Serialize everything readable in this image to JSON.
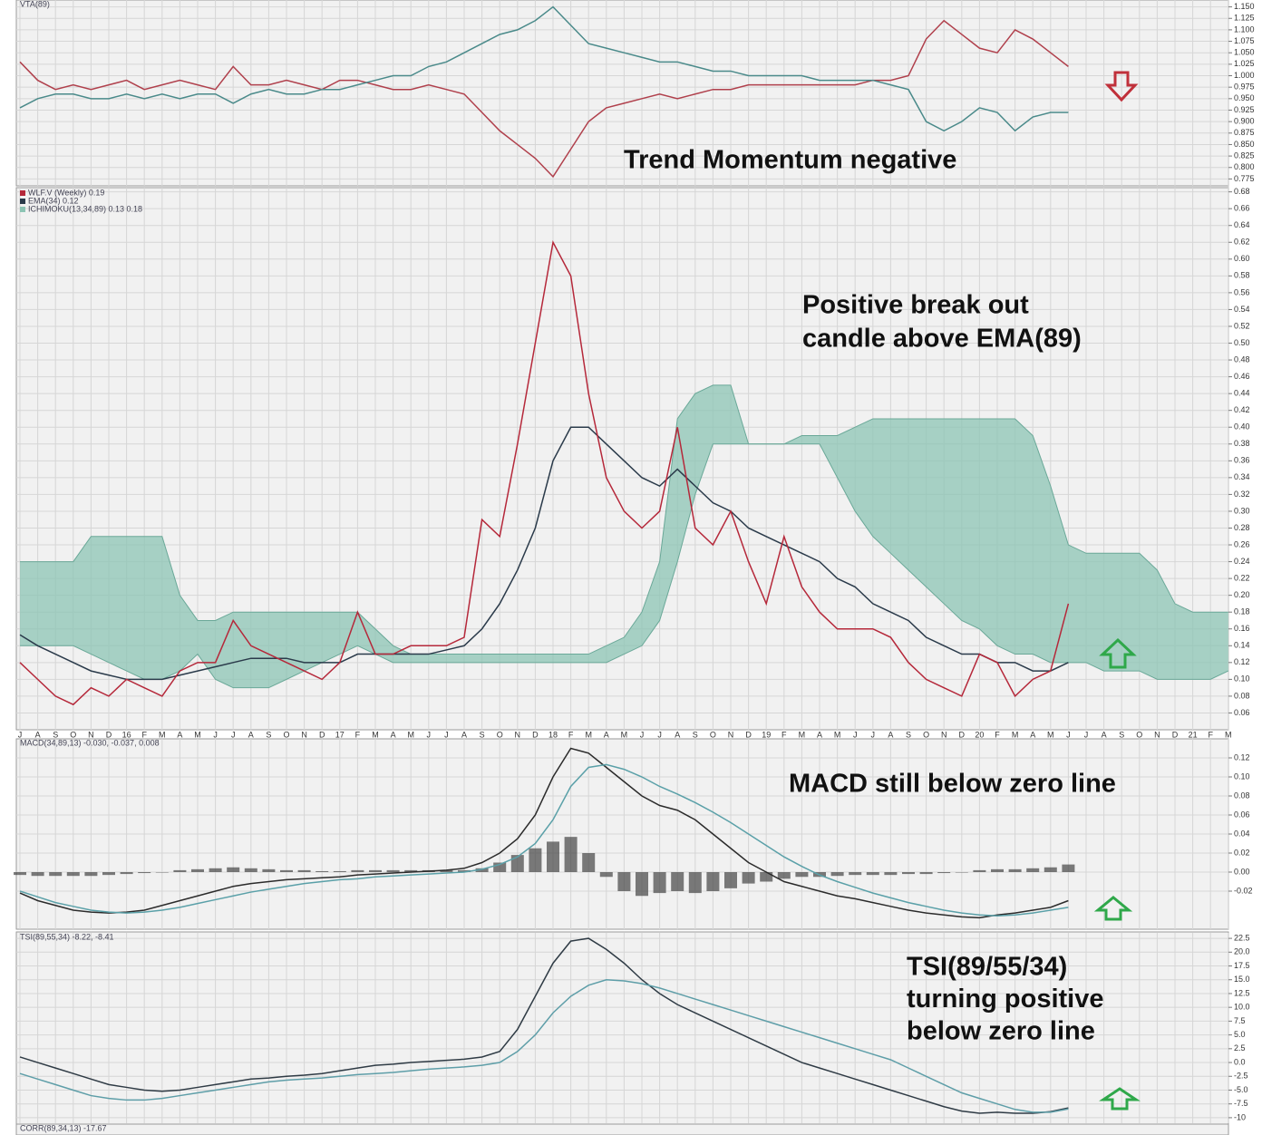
{
  "chart_data": [
    {
      "type": "line",
      "title": "VTA(89)",
      "ylim": [
        0.76,
        1.165
      ],
      "yticks": [
        0.775,
        {
          "value": 0.8,
          "label": "0.800"
        },
        0.825,
        {
          "value": 0.85,
          "label": "0.850"
        },
        0.875,
        {
          "value": 0.9,
          "label": "0.900"
        },
        0.925,
        {
          "value": 0.95,
          "label": "0.950"
        },
        0.975,
        {
          "value": 1,
          "label": "1.000"
        },
        1.025,
        {
          "value": 1.05,
          "label": "1.050"
        },
        1.075,
        {
          "value": 1.1,
          "label": "1.100"
        },
        1.125,
        {
          "value": 1.15,
          "label": "1.150"
        }
      ],
      "grid": true,
      "series": [
        {
          "color": "#b0404c",
          "values": [
            1.03,
            0.99,
            0.97,
            0.98,
            0.97,
            0.98,
            0.99,
            0.97,
            0.98,
            0.99,
            0.98,
            0.97,
            1.02,
            0.98,
            0.98,
            0.99,
            0.98,
            0.97,
            0.99,
            0.99,
            0.98,
            0.97,
            0.97,
            0.98,
            0.97,
            0.96,
            0.92,
            0.88,
            0.85,
            0.82,
            0.78,
            0.84,
            0.9,
            0.93,
            0.94,
            0.95,
            0.96,
            0.95,
            0.96,
            0.97,
            0.97,
            0.98,
            0.98,
            0.98,
            0.98,
            0.98,
            0.98,
            0.98,
            0.99,
            0.99,
            1.0,
            1.08,
            1.12,
            1.09,
            1.06,
            1.05,
            1.1,
            1.08,
            1.05,
            1.02
          ]
        },
        {
          "color": "#4a8a8a",
          "values": [
            0.93,
            0.95,
            0.96,
            0.96,
            0.95,
            0.95,
            0.96,
            0.95,
            0.96,
            0.95,
            0.96,
            0.96,
            0.94,
            0.96,
            0.97,
            0.96,
            0.96,
            0.97,
            0.97,
            0.98,
            0.99,
            1.0,
            1.0,
            1.02,
            1.03,
            1.05,
            1.07,
            1.09,
            1.1,
            1.12,
            1.15,
            1.11,
            1.07,
            1.06,
            1.05,
            1.04,
            1.03,
            1.03,
            1.02,
            1.01,
            1.01,
            1.0,
            1.0,
            1.0,
            1.0,
            0.99,
            0.99,
            0.99,
            0.99,
            0.98,
            0.97,
            0.9,
            0.88,
            0.9,
            0.93,
            0.92,
            0.88,
            0.91,
            0.92,
            0.92
          ]
        }
      ],
      "annotations": [
        "Trend Momentum negative"
      ]
    },
    {
      "type": "line",
      "legend": "upper left",
      "categories": [
        "J",
        "A",
        "S",
        "O",
        "N",
        "D",
        "16",
        "F",
        "M",
        "A",
        "M",
        "J",
        "J",
        "A",
        "S",
        "O",
        "N",
        "D",
        "17",
        "F",
        "M",
        "A",
        "M",
        "J",
        "J",
        "A",
        "S",
        "O",
        "N",
        "D",
        "18",
        "F",
        "M",
        "A",
        "M",
        "J",
        "J",
        "A",
        "S",
        "O",
        "N",
        "D",
        "19",
        "F",
        "M",
        "A",
        "M",
        "J",
        "J",
        "A",
        "S",
        "O",
        "N",
        "D",
        "20",
        "F",
        "M",
        "A",
        "M",
        "J",
        "J",
        "A",
        "S",
        "O",
        "N",
        "D",
        "21",
        "F",
        "M"
      ],
      "ylim": [
        0.04,
        0.685
      ],
      "yticks": [
        0.06,
        0.08,
        {
          "value": 0.1,
          "label": "0.10"
        },
        0.12,
        0.14,
        0.16,
        0.18,
        {
          "value": 0.2,
          "label": "0.20"
        },
        0.22,
        0.24,
        0.26,
        0.28,
        {
          "value": 0.3,
          "label": "0.30"
        },
        0.32,
        0.34,
        0.36,
        0.38,
        {
          "value": 0.4,
          "label": "0.40"
        },
        0.42,
        0.44,
        0.46,
        0.48,
        {
          "value": 0.5,
          "label": "0.50"
        },
        0.52,
        0.54,
        0.56,
        0.58,
        {
          "value": 0.6,
          "label": "0.60"
        },
        0.62,
        0.64,
        0.66,
        0.68
      ],
      "grid": true,
      "series": [
        {
          "name": "ICHIMOKU(13,34,89) 0.13 0.18",
          "color": "#8cc4b4",
          "upper": [
            0.24,
            0.24,
            0.24,
            0.24,
            0.27,
            0.27,
            0.27,
            0.27,
            0.27,
            0.2,
            0.17,
            0.17,
            0.18,
            0.18,
            0.18,
            0.18,
            0.18,
            0.18,
            0.18,
            0.18,
            0.16,
            0.14,
            0.13,
            0.13,
            0.13,
            0.13,
            0.13,
            0.13,
            0.13,
            0.13,
            0.13,
            0.13,
            0.13,
            0.14,
            0.15,
            0.18,
            0.24,
            0.41,
            0.44,
            0.45,
            0.45,
            0.38,
            0.38,
            0.38,
            0.39,
            0.39,
            0.39,
            0.4,
            0.41,
            0.41,
            0.41,
            0.41,
            0.41,
            0.41,
            0.41,
            0.41,
            0.41,
            0.39,
            0.33,
            0.26,
            0.25,
            0.25,
            0.25,
            0.25,
            0.23,
            0.19,
            0.18,
            0.18,
            0.18
          ],
          "lower": [
            0.14,
            0.14,
            0.14,
            0.14,
            0.13,
            0.12,
            0.11,
            0.1,
            0.1,
            0.11,
            0.13,
            0.1,
            0.09,
            0.09,
            0.09,
            0.1,
            0.11,
            0.12,
            0.13,
            0.14,
            0.13,
            0.12,
            0.12,
            0.12,
            0.12,
            0.12,
            0.12,
            0.12,
            0.12,
            0.12,
            0.12,
            0.12,
            0.12,
            0.12,
            0.13,
            0.14,
            0.17,
            0.24,
            0.32,
            0.38,
            0.38,
            0.38,
            0.38,
            0.38,
            0.38,
            0.38,
            0.34,
            0.3,
            0.27,
            0.25,
            0.23,
            0.21,
            0.19,
            0.17,
            0.16,
            0.14,
            0.13,
            0.13,
            0.12,
            0.12,
            0.12,
            0.11,
            0.11,
            0.11,
            0.1,
            0.1,
            0.1,
            0.1,
            0.11
          ]
        },
        {
          "name": "EMA(34) 0.12",
          "color": "#2a3a4a",
          "values": [
            0.153,
            0.14,
            0.13,
            0.12,
            0.11,
            0.105,
            0.1,
            0.1,
            0.1,
            0.105,
            0.11,
            0.115,
            0.12,
            0.125,
            0.125,
            0.125,
            0.12,
            0.12,
            0.12,
            0.13,
            0.13,
            0.13,
            0.13,
            0.13,
            0.135,
            0.14,
            0.16,
            0.19,
            0.23,
            0.28,
            0.36,
            0.4,
            0.4,
            0.38,
            0.36,
            0.34,
            0.33,
            0.35,
            0.33,
            0.31,
            0.3,
            0.28,
            0.27,
            0.26,
            0.25,
            0.24,
            0.22,
            0.21,
            0.19,
            0.18,
            0.17,
            0.15,
            0.14,
            0.13,
            0.13,
            0.12,
            0.12,
            0.11,
            0.11,
            0.12,
            null,
            null,
            null,
            null,
            null,
            null,
            null,
            null,
            null
          ]
        },
        {
          "name": "WLF.V (Weekly) 0.19",
          "color": "#b5283a",
          "values": [
            0.12,
            0.1,
            0.08,
            0.07,
            0.09,
            0.08,
            0.1,
            0.09,
            0.08,
            0.11,
            0.12,
            0.12,
            0.17,
            0.14,
            0.13,
            0.12,
            0.11,
            0.1,
            0.12,
            0.18,
            0.13,
            0.13,
            0.14,
            0.14,
            0.14,
            0.15,
            0.29,
            0.27,
            0.38,
            0.5,
            0.62,
            0.58,
            0.44,
            0.34,
            0.3,
            0.28,
            0.3,
            0.4,
            0.28,
            0.26,
            0.3,
            0.24,
            0.19,
            0.27,
            0.21,
            0.18,
            0.16,
            0.16,
            0.16,
            0.15,
            0.12,
            0.1,
            0.09,
            0.08,
            0.13,
            0.12,
            0.08,
            0.1,
            0.11,
            0.19,
            null,
            null,
            null,
            null,
            null,
            null,
            null,
            null,
            null
          ]
        }
      ],
      "annotations": [
        "Positive break out",
        "candle above EMA(89)"
      ]
    },
    {
      "type": "line",
      "title": "MACD(34,89,13) -0.030, -0.037, 0.008",
      "ylim": [
        -0.06,
        0.14
      ],
      "yticks": [
        -0.02,
        {
          "value": 0,
          "label": "0.00"
        },
        0.02,
        0.04,
        0.06,
        0.08,
        {
          "value": 0.1,
          "label": "0.10"
        },
        0.12
      ],
      "grid": true,
      "series": [
        {
          "color": "#444444",
          "style": "bar",
          "values": [
            -0.003,
            -0.004,
            -0.004,
            -0.004,
            -0.004,
            -0.003,
            -0.002,
            -0.001,
            0.0,
            0.002,
            0.003,
            0.004,
            0.005,
            0.004,
            0.003,
            0.002,
            0.002,
            0.001,
            0.001,
            0.002,
            0.002,
            0.002,
            0.002,
            0.002,
            0.002,
            0.002,
            0.004,
            0.01,
            0.018,
            0.025,
            0.032,
            0.037,
            0.02,
            -0.005,
            -0.02,
            -0.025,
            -0.022,
            -0.02,
            -0.022,
            -0.02,
            -0.017,
            -0.012,
            -0.01,
            -0.007,
            -0.005,
            -0.005,
            -0.004,
            -0.003,
            -0.003,
            -0.003,
            -0.002,
            -0.002,
            -0.001,
            0.0,
            0.002,
            0.003,
            0.003,
            0.004,
            0.005,
            0.008
          ]
        },
        {
          "color": "#2b2b2b",
          "values": [
            -0.022,
            -0.03,
            -0.035,
            -0.04,
            -0.042,
            -0.043,
            -0.042,
            -0.04,
            -0.035,
            -0.03,
            -0.025,
            -0.02,
            -0.015,
            -0.012,
            -0.01,
            -0.008,
            -0.007,
            -0.006,
            -0.005,
            -0.003,
            -0.002,
            -0.001,
            0,
            0.001,
            0.002,
            0.004,
            0.01,
            0.02,
            0.035,
            0.06,
            0.1,
            0.13,
            0.125,
            0.11,
            0.095,
            0.08,
            0.07,
            0.065,
            0.055,
            0.04,
            0.025,
            0.01,
            0.0,
            -0.01,
            -0.015,
            -0.02,
            -0.025,
            -0.028,
            -0.032,
            -0.036,
            -0.04,
            -0.043,
            -0.045,
            -0.047,
            -0.048,
            -0.045,
            -0.043,
            -0.04,
            -0.037,
            -0.03
          ]
        },
        {
          "color": "#5aa0a8",
          "values": [
            -0.02,
            -0.026,
            -0.032,
            -0.036,
            -0.04,
            -0.042,
            -0.043,
            -0.042,
            -0.04,
            -0.037,
            -0.033,
            -0.029,
            -0.025,
            -0.021,
            -0.018,
            -0.015,
            -0.012,
            -0.01,
            -0.008,
            -0.007,
            -0.005,
            -0.004,
            -0.003,
            -0.002,
            -0.001,
            0.0,
            0.003,
            0.008,
            0.016,
            0.03,
            0.055,
            0.09,
            0.11,
            0.113,
            0.108,
            0.1,
            0.09,
            0.082,
            0.073,
            0.063,
            0.052,
            0.04,
            0.028,
            0.016,
            0.006,
            -0.003,
            -0.01,
            -0.016,
            -0.022,
            -0.027,
            -0.032,
            -0.036,
            -0.04,
            -0.043,
            -0.045,
            -0.046,
            -0.045,
            -0.043,
            -0.04,
            -0.037
          ]
        }
      ],
      "annotations": [
        "MACD still below zero line"
      ]
    },
    {
      "type": "line",
      "title": "TSI(89,55,34) -8.22, -8.41",
      "ylim": [
        -11,
        23.5
      ],
      "yticks": [
        -10,
        -7.5,
        {
          "value": -5,
          "label": "-5.0"
        },
        -2.5,
        {
          "value": 0,
          "label": "0.0"
        },
        2.5,
        {
          "value": 5,
          "label": "5.0"
        },
        7.5,
        {
          "value": 10,
          "label": "10.0"
        },
        12.5,
        {
          "value": 15,
          "label": "15.0"
        },
        17.5,
        {
          "value": 20,
          "label": "20.0"
        },
        22.5
      ],
      "grid": true,
      "series": [
        {
          "color": "#2f3b45",
          "values": [
            1.0,
            0.0,
            -1.0,
            -2.0,
            -3.0,
            -4.0,
            -4.5,
            -5.0,
            -5.2,
            -5.0,
            -4.5,
            -4.0,
            -3.5,
            -3.0,
            -2.8,
            -2.5,
            -2.3,
            -2.0,
            -1.5,
            -1.0,
            -0.5,
            -0.3,
            0.0,
            0.2,
            0.4,
            0.6,
            1.0,
            2.0,
            6.0,
            12.0,
            18.0,
            22.0,
            22.5,
            20.5,
            18.0,
            15.0,
            12.5,
            10.5,
            9.0,
            7.5,
            6.0,
            4.5,
            3.0,
            1.5,
            0.0,
            -1.0,
            -2.0,
            -3.0,
            -4.0,
            -5.0,
            -6.0,
            -7.0,
            -8.0,
            -8.8,
            -9.2,
            -9.0,
            -9.2,
            -9.2,
            -8.9,
            -8.22
          ]
        },
        {
          "color": "#5e9ea8",
          "values": [
            -2.0,
            -3.0,
            -4.0,
            -5.0,
            -6.0,
            -6.5,
            -6.8,
            -6.8,
            -6.5,
            -6.0,
            -5.5,
            -5.0,
            -4.5,
            -4.0,
            -3.5,
            -3.2,
            -3.0,
            -2.8,
            -2.5,
            -2.2,
            -2.0,
            -1.8,
            -1.5,
            -1.2,
            -1.0,
            -0.8,
            -0.5,
            0.0,
            2.0,
            5.0,
            9.0,
            12.0,
            14.0,
            15.0,
            14.8,
            14.3,
            13.5,
            12.5,
            11.5,
            10.5,
            9.5,
            8.5,
            7.5,
            6.5,
            5.5,
            4.5,
            3.5,
            2.5,
            1.5,
            0.5,
            -1.0,
            -2.5,
            -4.0,
            -5.5,
            -6.5,
            -7.5,
            -8.5,
            -9.0,
            -9.0,
            -8.41
          ]
        }
      ],
      "annotations": [
        "TSI(89/55/34)",
        "turning positive",
        "below zero line"
      ]
    },
    {
      "type": "line",
      "title": "CORR(89,34,13) -17.67"
    }
  ]
}
